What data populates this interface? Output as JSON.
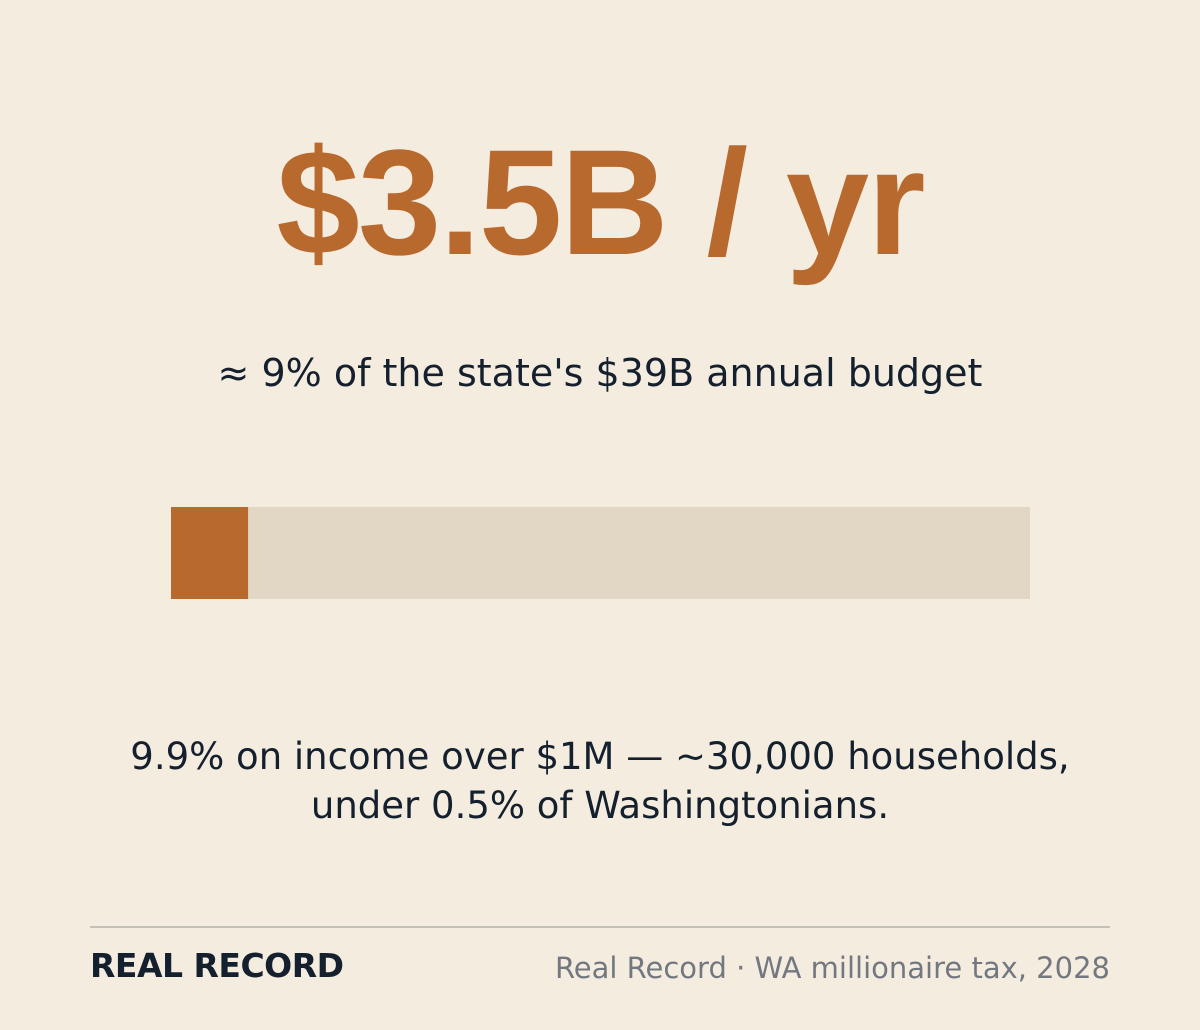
{
  "headline": "$3.5B / yr",
  "subtitle": "≈ 9% of the state's $39B annual budget",
  "meter": {
    "value": 3.5,
    "total": 39
  },
  "note": [
    "9.9% on income over $1M — ~30,000 households,",
    "under 0.5% of Washingtonians."
  ],
  "footer": {
    "brand": "REAL RECORD",
    "source": "Real Record · WA millionaire tax, 2028"
  }
}
